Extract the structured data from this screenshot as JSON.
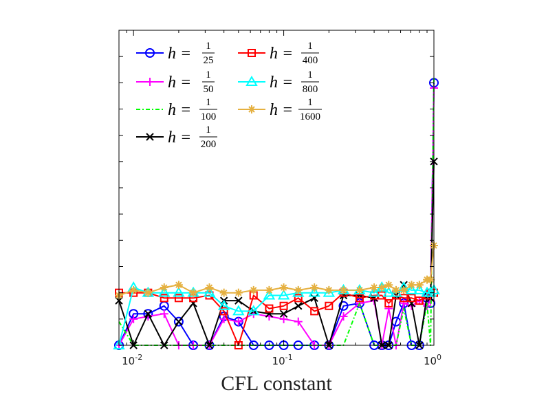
{
  "chart_data": {
    "type": "line",
    "title": "",
    "xlabel": "CFL constant",
    "ylabel": "",
    "xscale": "log",
    "xlim": [
      0.008,
      1.0
    ],
    "ylim": [
      0,
      6
    ],
    "x_tick_labels": [
      {
        "x": 0.01,
        "base": "10",
        "exp": "-2"
      },
      {
        "x": 0.1,
        "base": "10",
        "exp": "-1"
      },
      {
        "x": 1.0,
        "base": "10",
        "exp": "0"
      }
    ],
    "legend_position": "top-left",
    "grid": false,
    "series": [
      {
        "name": "h = 1/25",
        "label_lhs": "h =",
        "num": "1",
        "den": "25",
        "color": "#0000ff",
        "marker": "circle",
        "dash": "solid",
        "x": [
          0.008,
          0.01,
          0.0125,
          0.016,
          0.02,
          0.025,
          0.032,
          0.04,
          0.05,
          0.063,
          0.08,
          0.1,
          0.125,
          0.16,
          0.2,
          0.25,
          0.32,
          0.4,
          0.45,
          0.5,
          0.56,
          0.63,
          0.71,
          0.8,
          0.9,
          0.95,
          1.0
        ],
        "y": [
          0,
          0.6,
          0.6,
          0.75,
          0.45,
          0,
          0,
          0.55,
          0.45,
          0,
          0,
          0,
          0,
          0,
          0,
          0.75,
          0.8,
          0,
          0,
          0,
          0.45,
          0.8,
          0,
          0,
          0.9,
          0.8,
          5.0
        ]
      },
      {
        "name": "h = 1/50",
        "label_lhs": "h =",
        "num": "1",
        "den": "50",
        "color": "#ff00ff",
        "marker": "plus",
        "dash": "solid",
        "x": [
          0.008,
          0.01,
          0.0125,
          0.016,
          0.02,
          0.025,
          0.032,
          0.04,
          0.05,
          0.063,
          0.08,
          0.1,
          0.125,
          0.16,
          0.2,
          0.25,
          0.32,
          0.4,
          0.45,
          0.5,
          0.56,
          0.63,
          0.71,
          0.8,
          0.9,
          0.95,
          1.0
        ],
        "y": [
          0,
          0.5,
          0.55,
          0.6,
          0,
          0,
          0,
          0.5,
          0.45,
          0.6,
          0.55,
          0.5,
          0.45,
          0,
          0,
          0.55,
          0.8,
          0.85,
          0,
          0.7,
          0,
          0.8,
          0.75,
          0.85,
          0.75,
          0.85,
          4.9
        ]
      },
      {
        "name": "h = 1/100",
        "label_lhs": "h =",
        "num": "1",
        "den": "100",
        "color": "#00ff00",
        "marker": "none",
        "dash": "dashdot",
        "x": [
          0.008,
          0.01,
          0.0125,
          0.016,
          0.02,
          0.025,
          0.032,
          0.04,
          0.05,
          0.063,
          0.08,
          0.1,
          0.125,
          0.16,
          0.2,
          0.25,
          0.32,
          0.4,
          0.45,
          0.5,
          0.56,
          0.63,
          0.71,
          0.8,
          0.9,
          0.95,
          1.0
        ],
        "y": [
          0.45,
          0,
          0,
          0,
          0,
          0,
          0,
          0,
          0,
          0,
          0,
          0,
          0,
          0,
          0,
          0,
          0.8,
          0,
          0,
          0,
          0,
          0.7,
          0,
          0,
          0.8,
          0,
          5.1
        ]
      },
      {
        "name": "h = 1/200",
        "label_lhs": "h =",
        "num": "1",
        "den": "200",
        "color": "#000000",
        "marker": "cross",
        "dash": "solid",
        "x": [
          0.008,
          0.01,
          0.0125,
          0.016,
          0.02,
          0.025,
          0.032,
          0.04,
          0.05,
          0.063,
          0.08,
          0.1,
          0.125,
          0.16,
          0.2,
          0.25,
          0.32,
          0.4,
          0.45,
          0.5,
          0.56,
          0.63,
          0.71,
          0.8,
          0.9,
          0.95,
          1.0
        ],
        "y": [
          0.85,
          0,
          0.6,
          0,
          0.45,
          0.8,
          0,
          0.85,
          0.85,
          0.65,
          0.6,
          0.6,
          0.75,
          0.9,
          0,
          0.95,
          0.95,
          0.9,
          0,
          0,
          0.95,
          1.15,
          0.8,
          0,
          0.95,
          0.9,
          3.5
        ]
      },
      {
        "name": "h = 1/400",
        "label_lhs": "h =",
        "num": "1",
        "den": "400",
        "color": "#ff0000",
        "marker": "square",
        "dash": "solid",
        "x": [
          0.008,
          0.01,
          0.0125,
          0.016,
          0.02,
          0.025,
          0.032,
          0.04,
          0.05,
          0.063,
          0.08,
          0.1,
          0.125,
          0.16,
          0.2,
          0.25,
          0.32,
          0.4,
          0.45,
          0.5,
          0.56,
          0.63,
          0.71,
          0.8,
          0.9,
          0.95,
          1.0
        ],
        "y": [
          1.0,
          1.0,
          1.0,
          0.9,
          0.9,
          0.9,
          0.95,
          0.65,
          0,
          0.95,
          0.7,
          0.75,
          0.9,
          0.65,
          0.75,
          1.0,
          0.9,
          0.95,
          0.95,
          0.8,
          0.95,
          0.9,
          0.9,
          0.85,
          0.95,
          1.0,
          1.0
        ]
      },
      {
        "name": "h = 1/800",
        "label_lhs": "h =",
        "num": "1",
        "den": "800",
        "color": "#00ffff",
        "marker": "triangle",
        "dash": "solid",
        "x": [
          0.008,
          0.01,
          0.0125,
          0.016,
          0.02,
          0.025,
          0.032,
          0.04,
          0.05,
          0.063,
          0.08,
          0.1,
          0.125,
          0.16,
          0.2,
          0.25,
          0.32,
          0.4,
          0.45,
          0.5,
          0.56,
          0.63,
          0.71,
          0.8,
          0.9,
          0.95,
          1.0
        ],
        "y": [
          0,
          1.1,
          1.0,
          1.0,
          1.0,
          1.0,
          1.0,
          0.75,
          0.65,
          0.65,
          0.95,
          0.95,
          1.0,
          1.0,
          1.0,
          1.05,
          1.05,
          1.0,
          1.1,
          1.0,
          1.0,
          1.1,
          1.05,
          1.05,
          1.0,
          1.0,
          1.05
        ]
      },
      {
        "name": "h = 1/1600",
        "label_lhs": "h =",
        "num": "1",
        "den": "1600",
        "color": "#e5b040",
        "marker": "star",
        "dash": "solid",
        "x": [
          0.008,
          0.01,
          0.0125,
          0.016,
          0.02,
          0.025,
          0.032,
          0.04,
          0.05,
          0.063,
          0.08,
          0.1,
          0.125,
          0.16,
          0.2,
          0.25,
          0.32,
          0.4,
          0.45,
          0.5,
          0.56,
          0.63,
          0.71,
          0.8,
          0.9,
          0.95,
          1.0
        ],
        "y": [
          0.95,
          1.05,
          1.0,
          1.1,
          1.15,
          1.0,
          1.1,
          1.0,
          1.0,
          1.05,
          1.05,
          1.1,
          1.05,
          1.1,
          1.05,
          1.05,
          1.05,
          1.1,
          1.1,
          1.15,
          1.05,
          1.05,
          1.15,
          1.15,
          1.25,
          1.25,
          1.9
        ]
      }
    ]
  }
}
